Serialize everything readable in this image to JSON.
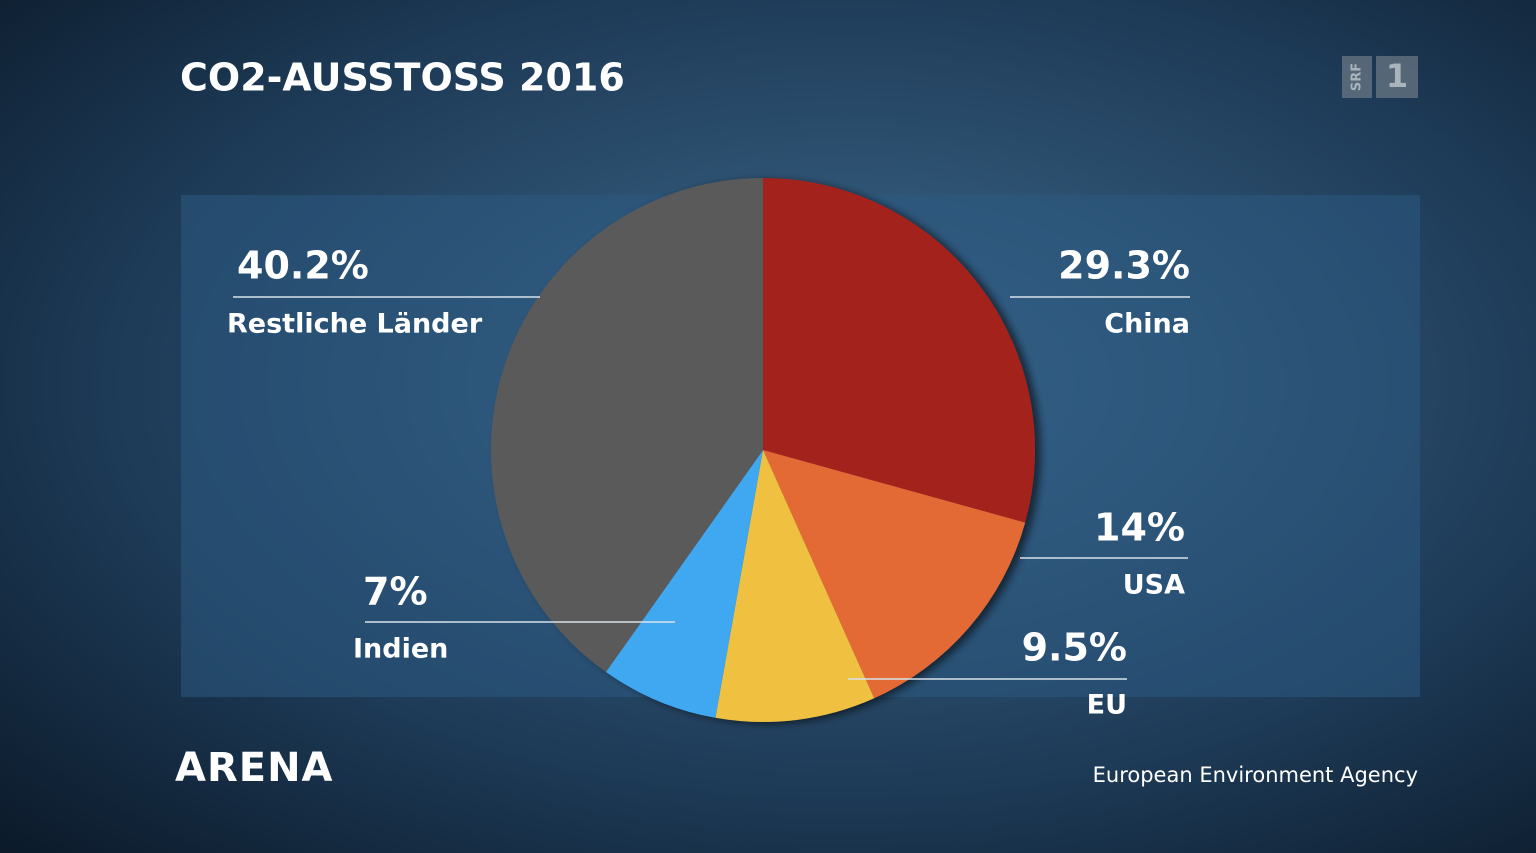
{
  "chart_data": {
    "type": "pie",
    "title": "CO2-AUSSTOSS 2016",
    "categories": [
      "China",
      "USA",
      "EU",
      "Indien",
      "Restliche Länder"
    ],
    "values": [
      29.3,
      14,
      9.5,
      7,
      40.2
    ],
    "value_labels": [
      "29.3%",
      "14%",
      "9.5%",
      "7%",
      "40.2%"
    ],
    "colors": [
      "#a3231f",
      "#e36a35",
      "#f0c040",
      "#3fa8f0",
      "#5a5a5a"
    ],
    "source": "European Environment Agency"
  },
  "branding": {
    "show": "ARENA",
    "channel": "SRF",
    "channel_number": "1"
  }
}
